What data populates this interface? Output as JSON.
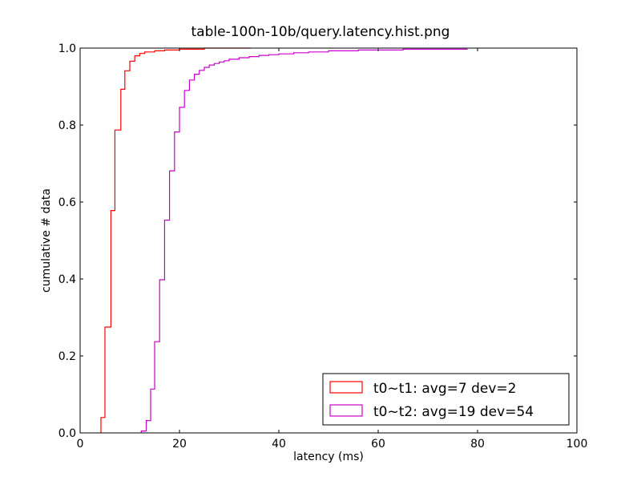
{
  "chart_data": {
    "type": "line",
    "step": true,
    "title": "table-100n-10b/query.latency.hist.png",
    "xlabel": "latency (ms)",
    "ylabel": "cumulative # data",
    "xlim": [
      0,
      100
    ],
    "ylim": [
      0.0,
      1.0
    ],
    "xticks": [
      0,
      20,
      40,
      60,
      80,
      100
    ],
    "xtick_labels": [
      "0",
      "20",
      "40",
      "60",
      "80",
      "100"
    ],
    "yticks": [
      0.0,
      0.2,
      0.4,
      0.6,
      0.8,
      1.0
    ],
    "ytick_labels": [
      "0.0",
      "0.2",
      "0.4",
      "0.6",
      "0.8",
      "1.0"
    ],
    "grid": false,
    "legend_position": "lower-right",
    "series": [
      {
        "name": "t0~t1: avg=7 dev=2",
        "color": "#ff0000",
        "x": [
          4.2,
          4.2,
          5.0,
          5.0,
          6.2,
          6.2,
          7.0,
          7.0,
          8.2,
          8.2,
          9.0,
          9.0,
          10.0,
          10.0,
          11.0,
          11.0,
          12.0,
          12.0,
          13.0,
          13.0,
          15.0,
          15.0,
          17.0,
          17.0,
          20.0,
          20.0,
          25.0,
          25.0,
          34.3
        ],
        "y": [
          0.0,
          0.04,
          0.04,
          0.275,
          0.275,
          0.578,
          0.578,
          0.787,
          0.787,
          0.893,
          0.893,
          0.941,
          0.941,
          0.966,
          0.966,
          0.98,
          0.98,
          0.986,
          0.986,
          0.99,
          0.99,
          0.993,
          0.993,
          0.995,
          0.995,
          0.997,
          0.997,
          1.0,
          1.0
        ]
      },
      {
        "name": "t0~t2: avg=19 dev=54",
        "color": "#cc00cc",
        "x": [
          12.3,
          12.3,
          13.3,
          13.3,
          14.2,
          14.2,
          15.0,
          15.0,
          16.0,
          16.0,
          17.0,
          17.0,
          18.0,
          18.0,
          19.0,
          19.0,
          20.0,
          20.0,
          21.0,
          21.0,
          22.0,
          22.0,
          23.0,
          23.0,
          24.0,
          24.0,
          25.0,
          25.0,
          26.0,
          26.0,
          27.0,
          27.0,
          28.0,
          28.0,
          29.0,
          29.0,
          30.0,
          30.0,
          32.0,
          32.0,
          34.0,
          34.0,
          36.0,
          36.0,
          38.0,
          38.0,
          40.0,
          40.0,
          43.0,
          43.0,
          46.0,
          46.0,
          50.0,
          50.0,
          56.0,
          56.0,
          65.0,
          65.0,
          78.0
        ],
        "y": [
          0.0,
          0.005,
          0.005,
          0.032,
          0.032,
          0.114,
          0.114,
          0.237,
          0.237,
          0.398,
          0.398,
          0.553,
          0.553,
          0.681,
          0.681,
          0.782,
          0.782,
          0.846,
          0.846,
          0.89,
          0.89,
          0.917,
          0.917,
          0.932,
          0.932,
          0.942,
          0.942,
          0.95,
          0.95,
          0.956,
          0.956,
          0.96,
          0.96,
          0.964,
          0.964,
          0.967,
          0.967,
          0.971,
          0.971,
          0.975,
          0.975,
          0.978,
          0.978,
          0.981,
          0.981,
          0.983,
          0.983,
          0.985,
          0.985,
          0.988,
          0.988,
          0.99,
          0.99,
          0.993,
          0.993,
          0.995,
          0.995,
          0.997,
          0.997
        ]
      }
    ]
  }
}
